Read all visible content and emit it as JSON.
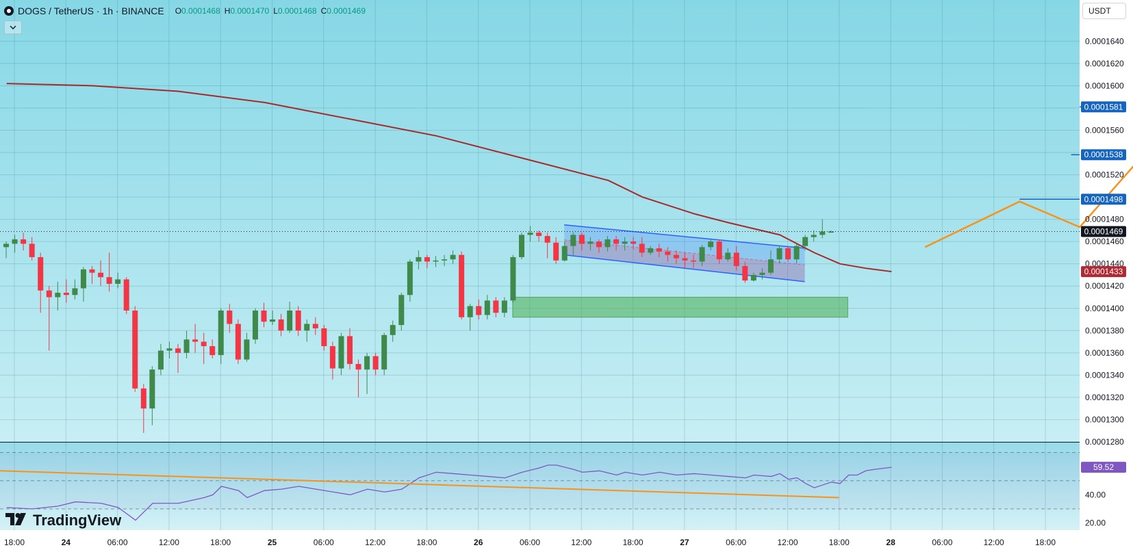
{
  "header": {
    "symbol": "DOGS / TetherUS · 1h · BINANCE",
    "ohlc": [
      {
        "key": "O",
        "value": "0.0001468"
      },
      {
        "key": "H",
        "value": "0.0001470"
      },
      {
        "key": "L",
        "value": "0.0001468"
      },
      {
        "key": "C",
        "value": "0.0001469"
      }
    ],
    "collapse_icon": "chevron-down-icon"
  },
  "currency_button": "USDT",
  "watermark": {
    "text": "TradingView",
    "icon": "tradingview-logo-icon"
  },
  "colors": {
    "background_top": "#88d8e6",
    "background_bottom": "#c9eef4",
    "up_candle": "#3f8a4a",
    "down_candle": "#f23645",
    "moving_average": "#a52a2a",
    "channel": "#2962ff",
    "demand_zone": "#4caf50",
    "projection": "#f7931a",
    "level_lines": "#1565c0",
    "rsi_line": "#7e57c2",
    "rsi_trend": "#f7931a"
  },
  "chart_data": [
    {
      "type": "candlestick",
      "price_scale": {
        "ylim": [
          0.000128,
          0.000165
        ],
        "tick_labels": [
          "0.0001640",
          "0.0001620",
          "0.0001600",
          "0.0001580",
          "0.0001560",
          "0.0001540",
          "0.0001520",
          "0.0001500",
          "0.0001480",
          "0.0001460",
          "0.0001440",
          "0.0001420",
          "0.0001400",
          "0.0001380",
          "0.0001360",
          "0.0001340",
          "0.0001320",
          "0.0001300",
          "0.0001280"
        ],
        "tick_values": [
          0.000164,
          0.000162,
          0.00016,
          0.000158,
          0.000156,
          0.000154,
          0.000152,
          0.00015,
          0.000148,
          0.000146,
          0.000144,
          0.000142,
          0.00014,
          0.000138,
          0.000136,
          0.000134,
          0.000132,
          0.00013,
          0.000128
        ]
      },
      "time_scale": {
        "labels": [
          "18:00",
          "24",
          "06:00",
          "12:00",
          "18:00",
          "25",
          "06:00",
          "12:00",
          "18:00",
          "26",
          "06:00",
          "12:00",
          "18:00",
          "27",
          "06:00",
          "12:00",
          "18:00",
          "28",
          "06:00",
          "12:00",
          "18:00"
        ],
        "bold_labels": [
          "24",
          "25",
          "26",
          "27",
          "28"
        ],
        "hours_from_first_label": [
          0,
          6,
          12,
          18,
          24,
          30,
          36,
          42,
          48,
          54,
          60,
          66,
          72,
          78,
          84,
          90,
          96,
          102,
          108,
          114,
          120
        ]
      },
      "candles": [
        [
          0.0001455,
          0.0001458,
          0.0001445,
          0.000146
        ],
        [
          0.0001458,
          0.0001462,
          0.000145,
          0.0001466
        ],
        [
          0.0001462,
          0.0001458,
          0.0001452,
          0.0001468
        ],
        [
          0.0001458,
          0.0001446,
          0.0001443,
          0.0001464
        ],
        [
          0.0001446,
          0.0001416,
          0.0001396,
          0.000145
        ],
        [
          0.0001416,
          0.000141,
          0.0001362,
          0.000142
        ],
        [
          0.000141,
          0.0001414,
          0.0001398,
          0.0001424
        ],
        [
          0.0001414,
          0.0001412,
          0.0001405,
          0.0001426
        ],
        [
          0.0001412,
          0.0001418,
          0.0001408,
          0.0001426
        ],
        [
          0.0001418,
          0.0001435,
          0.0001406,
          0.0001437
        ],
        [
          0.0001435,
          0.0001432,
          0.0001422,
          0.0001438
        ],
        [
          0.0001432,
          0.0001428,
          0.000142,
          0.0001443
        ],
        [
          0.0001428,
          0.0001422,
          0.0001415,
          0.000145
        ],
        [
          0.0001422,
          0.0001426,
          0.0001418,
          0.0001432
        ],
        [
          0.0001426,
          0.0001398,
          0.0001395,
          0.0001428
        ],
        [
          0.0001398,
          0.0001328,
          0.0001325,
          0.0001402
        ],
        [
          0.0001328,
          0.000131,
          0.0001288,
          0.0001332
        ],
        [
          0.000131,
          0.0001345,
          0.0001295,
          0.0001348
        ],
        [
          0.0001345,
          0.0001362,
          0.000134,
          0.0001368
        ],
        [
          0.0001362,
          0.0001364,
          0.0001355,
          0.000137
        ],
        [
          0.0001364,
          0.000136,
          0.0001342,
          0.0001368
        ],
        [
          0.000136,
          0.0001372,
          0.0001355,
          0.000138
        ],
        [
          0.0001372,
          0.000137,
          0.000136,
          0.0001386
        ],
        [
          0.000137,
          0.0001366,
          0.000135,
          0.0001378
        ],
        [
          0.0001366,
          0.0001358,
          0.0001355,
          0.0001372
        ],
        [
          0.0001358,
          0.0001398,
          0.000135,
          0.00014
        ],
        [
          0.0001398,
          0.0001386,
          0.0001378,
          0.0001404
        ],
        [
          0.0001386,
          0.0001354,
          0.000135,
          0.000139
        ],
        [
          0.0001354,
          0.0001372,
          0.0001352,
          0.0001378
        ],
        [
          0.0001372,
          0.0001398,
          0.0001368,
          0.00014
        ],
        [
          0.0001398,
          0.0001388,
          0.0001383,
          0.0001405
        ],
        [
          0.0001388,
          0.000139,
          0.0001385,
          0.0001398
        ],
        [
          0.000139,
          0.000138,
          0.0001375,
          0.0001395
        ],
        [
          0.000138,
          0.0001398,
          0.0001378,
          0.0001406
        ],
        [
          0.0001398,
          0.000138,
          0.0001375,
          0.0001402
        ],
        [
          0.000138,
          0.0001386,
          0.000137,
          0.000139
        ],
        [
          0.0001386,
          0.0001382,
          0.0001376,
          0.0001392
        ],
        [
          0.0001382,
          0.0001366,
          0.0001362,
          0.0001385
        ],
        [
          0.0001366,
          0.0001346,
          0.0001336,
          0.000137
        ],
        [
          0.0001346,
          0.0001375,
          0.000134,
          0.0001378
        ],
        [
          0.0001375,
          0.000135,
          0.0001345,
          0.0001382
        ],
        [
          0.000135,
          0.0001345,
          0.000132,
          0.0001354
        ],
        [
          0.0001345,
          0.0001357,
          0.0001323,
          0.000136
        ],
        [
          0.0001357,
          0.0001345,
          0.000134,
          0.000136
        ],
        [
          0.0001345,
          0.0001376,
          0.000134,
          0.0001378
        ],
        [
          0.0001376,
          0.0001385,
          0.000137,
          0.0001389
        ],
        [
          0.0001385,
          0.0001412,
          0.000138,
          0.0001414
        ],
        [
          0.0001412,
          0.0001442,
          0.0001406,
          0.0001444
        ],
        [
          0.0001442,
          0.0001446,
          0.0001435,
          0.0001452
        ],
        [
          0.0001446,
          0.0001442,
          0.0001436,
          0.0001448
        ],
        [
          0.0001442,
          0.0001443,
          0.0001437,
          0.0001447
        ],
        [
          0.0001443,
          0.0001444,
          0.0001438,
          0.0001448
        ],
        [
          0.0001444,
          0.0001448,
          0.000144,
          0.0001452
        ],
        [
          0.0001448,
          0.0001392,
          0.000139,
          0.0001451
        ],
        [
          0.0001392,
          0.0001402,
          0.000138,
          0.0001404
        ],
        [
          0.0001402,
          0.0001394,
          0.000139,
          0.0001408
        ],
        [
          0.0001394,
          0.0001407,
          0.000139,
          0.0001412
        ],
        [
          0.0001407,
          0.0001396,
          0.0001392,
          0.000141
        ],
        [
          0.0001396,
          0.0001407,
          0.0001392,
          0.000141
        ],
        [
          0.0001407,
          0.0001446,
          0.0001405,
          0.0001448
        ],
        [
          0.0001446,
          0.0001466,
          0.0001444,
          0.0001468
        ],
        [
          0.0001466,
          0.0001468,
          0.000146,
          0.0001474
        ],
        [
          0.0001468,
          0.0001465,
          0.000146,
          0.000147
        ],
        [
          0.0001465,
          0.0001459,
          0.0001445,
          0.0001468
        ],
        [
          0.0001459,
          0.0001443,
          0.000144,
          0.0001464
        ],
        [
          0.0001443,
          0.0001456,
          0.0001442,
          0.000146
        ],
        [
          0.0001456,
          0.0001466,
          0.0001448,
          0.0001468
        ],
        [
          0.0001466,
          0.0001458,
          0.0001452,
          0.0001468
        ],
        [
          0.0001458,
          0.000146,
          0.0001452,
          0.0001464
        ],
        [
          0.000146,
          0.0001455,
          0.000145,
          0.0001462
        ],
        [
          0.0001455,
          0.0001462,
          0.0001451,
          0.0001465
        ],
        [
          0.0001462,
          0.0001458,
          0.0001452,
          0.0001465
        ],
        [
          0.0001458,
          0.000146,
          0.0001452,
          0.0001464
        ],
        [
          0.000146,
          0.0001458,
          0.0001453,
          0.0001464
        ],
        [
          0.0001458,
          0.000145,
          0.0001446,
          0.0001464
        ],
        [
          0.000145,
          0.0001454,
          0.0001448,
          0.0001456
        ],
        [
          0.0001454,
          0.0001451,
          0.0001446,
          0.0001458
        ],
        [
          0.0001451,
          0.0001448,
          0.0001442,
          0.0001455
        ],
        [
          0.0001448,
          0.0001445,
          0.000144,
          0.0001452
        ],
        [
          0.0001445,
          0.0001443,
          0.0001436,
          0.000145
        ],
        [
          0.0001443,
          0.0001442,
          0.0001436,
          0.0001448
        ],
        [
          0.0001442,
          0.0001455,
          0.0001438,
          0.0001457
        ],
        [
          0.0001455,
          0.000146,
          0.0001452,
          0.0001462
        ],
        [
          0.000146,
          0.0001444,
          0.000144,
          0.0001462
        ],
        [
          0.0001444,
          0.000145,
          0.0001442,
          0.0001454
        ],
        [
          0.000145,
          0.0001438,
          0.0001434,
          0.0001456
        ],
        [
          0.0001438,
          0.0001425,
          0.0001423,
          0.0001442
        ],
        [
          0.0001425,
          0.000143,
          0.0001424,
          0.0001432
        ],
        [
          0.000143,
          0.0001432,
          0.0001426,
          0.0001436
        ],
        [
          0.0001432,
          0.0001444,
          0.000143,
          0.0001452
        ],
        [
          0.0001444,
          0.0001454,
          0.000144,
          0.0001456
        ],
        [
          0.0001454,
          0.0001444,
          0.0001442,
          0.0001456
        ],
        [
          0.0001444,
          0.0001456,
          0.000144,
          0.0001458
        ],
        [
          0.0001456,
          0.0001464,
          0.0001452,
          0.0001466
        ],
        [
          0.0001464,
          0.0001466,
          0.000146,
          0.000147
        ],
        [
          0.0001466,
          0.0001469,
          0.0001463,
          0.000148
        ],
        [
          0.0001468,
          0.0001469,
          0.0001468,
          0.000147
        ]
      ],
      "current_price": {
        "value": 0.0001469,
        "label": "0.0001469"
      },
      "moving_average": {
        "label": "0.0001433",
        "points": [
          [
            0,
            0.0001602
          ],
          [
            10,
            0.00016
          ],
          [
            20,
            0.0001595
          ],
          [
            30,
            0.0001585
          ],
          [
            40,
            0.000157
          ],
          [
            50,
            0.0001555
          ],
          [
            60,
            0.0001535
          ],
          [
            70,
            0.0001515
          ],
          [
            74,
            0.00015
          ],
          [
            80,
            0.0001485
          ],
          [
            84,
            0.0001477
          ],
          [
            90,
            0.0001466
          ],
          [
            94,
            0.000145
          ],
          [
            97,
            0.000144
          ],
          [
            100,
            0.0001436
          ],
          [
            103,
            0.0001433
          ]
        ]
      },
      "levels": [
        {
          "value": 0.0001581,
          "label": "0.0001581",
          "from_hour": 127
        },
        {
          "value": 0.0001538,
          "label": "0.0001538",
          "from_hour": 123
        },
        {
          "value": 0.0001498,
          "label": "0.0001498",
          "from_hour": 117
        }
      ],
      "demand_zone": {
        "from_hour": 58,
        "to_hour": 97,
        "top": 0.000141,
        "bottom": 0.0001392
      },
      "channel": {
        "upper": [
          [
            64,
            0.0001475
          ],
          [
            92,
            0.0001454
          ]
        ],
        "lower": [
          [
            64,
            0.0001448
          ],
          [
            92,
            0.0001424
          ]
        ]
      },
      "projection_path": [
        [
          106,
          0.0001455
        ],
        [
          117,
          0.0001496
        ],
        [
          124,
          0.0001473
        ],
        [
          136,
          0.0001578
        ]
      ]
    },
    {
      "type": "line",
      "name": "RSI",
      "ylim": [
        15,
        77
      ],
      "tick_labels": [
        "40.00",
        "20.00"
      ],
      "tick_values": [
        40,
        20
      ],
      "bands": [
        70,
        50,
        30
      ],
      "current": {
        "value": 59.52,
        "label": "59.52"
      },
      "values": [
        [
          0,
          31
        ],
        [
          3,
          30
        ],
        [
          6,
          32
        ],
        [
          8,
          35
        ],
        [
          11,
          34
        ],
        [
          13,
          31
        ],
        [
          15,
          22
        ],
        [
          17,
          34
        ],
        [
          20,
          34
        ],
        [
          23,
          38
        ],
        [
          24,
          40
        ],
        [
          25,
          46
        ],
        [
          27,
          43
        ],
        [
          28,
          38
        ],
        [
          30,
          43
        ],
        [
          32,
          44
        ],
        [
          34,
          46
        ],
        [
          36,
          44
        ],
        [
          38,
          42
        ],
        [
          40,
          40
        ],
        [
          42,
          44
        ],
        [
          44,
          42
        ],
        [
          46,
          44
        ],
        [
          48,
          52
        ],
        [
          50,
          56
        ],
        [
          52,
          55
        ],
        [
          54,
          54
        ],
        [
          56,
          53
        ],
        [
          58,
          52
        ],
        [
          60,
          56
        ],
        [
          62,
          59
        ],
        [
          63,
          61
        ],
        [
          64,
          61
        ],
        [
          66,
          58
        ],
        [
          67,
          56
        ],
        [
          69,
          57
        ],
        [
          71,
          54
        ],
        [
          72,
          56
        ],
        [
          74,
          54
        ],
        [
          76,
          56
        ],
        [
          78,
          54
        ],
        [
          80,
          55
        ],
        [
          82,
          54
        ],
        [
          84,
          53
        ],
        [
          86,
          52
        ],
        [
          87,
          54
        ],
        [
          89,
          53
        ],
        [
          90,
          55
        ],
        [
          91,
          51
        ],
        [
          92,
          52
        ],
        [
          93,
          48
        ],
        [
          94,
          45
        ],
        [
          95,
          47
        ],
        [
          96,
          49
        ],
        [
          97,
          48
        ],
        [
          98,
          54
        ],
        [
          99,
          54
        ],
        [
          100,
          57
        ],
        [
          101,
          58
        ],
        [
          103,
          59.5
        ]
      ],
      "trendline": [
        [
          0,
          57
        ],
        [
          96,
          38
        ]
      ]
    }
  ]
}
